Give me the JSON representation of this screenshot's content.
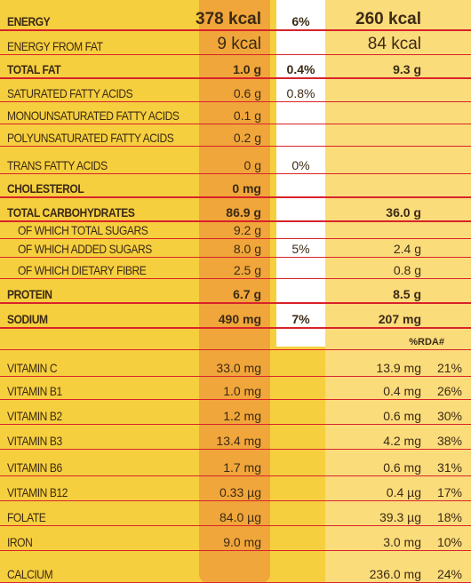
{
  "rows": [
    {
      "label": "ENERGY",
      "bold": true,
      "v1": "378 kcal",
      "v2": "6%",
      "v3": "260 kcal",
      "v4": ""
    },
    {
      "label": "ENERGY FROM FAT",
      "bold": false,
      "v1": "9 kcal",
      "v2": "",
      "v3": "84 kcal",
      "v4": ""
    },
    {
      "label": "TOTAL FAT",
      "bold": true,
      "v1": "1.0 g",
      "v2": "0.4%",
      "v3": "9.3 g",
      "v4": ""
    },
    {
      "label": "SATURATED FATTY ACIDS",
      "bold": false,
      "v1": "0.6 g",
      "v2": "0.8%",
      "v3": "",
      "v4": ""
    },
    {
      "label": "MONOUNSATURATED FATTY ACIDS",
      "bold": false,
      "v1": "0.1 g",
      "v2": "",
      "v3": "",
      "v4": ""
    },
    {
      "label": "POLYUNSATURATED FATTY ACIDS",
      "bold": false,
      "v1": "0.2 g",
      "v2": "",
      "v3": "",
      "v4": ""
    },
    {
      "label": "TRANS FATTY ACIDS",
      "bold": false,
      "v1": "0 g",
      "v2": "0%",
      "v3": "",
      "v4": ""
    },
    {
      "label": "CHOLESTEROL",
      "bold": true,
      "v1": "0 mg",
      "v2": "",
      "v3": "",
      "v4": ""
    },
    {
      "label": "TOTAL CARBOHYDRATES",
      "bold": true,
      "v1": "86.9 g",
      "v2": "",
      "v3": "36.0 g",
      "v4": ""
    },
    {
      "label": "OF WHICH TOTAL SUGARS",
      "bold": false,
      "sub": true,
      "v1": "9.2 g",
      "v2": "",
      "v3": "",
      "v4": ""
    },
    {
      "label": "OF WHICH ADDED SUGARS",
      "bold": false,
      "sub": true,
      "v1": "8.0 g",
      "v2": "5%",
      "v3": "2.4 g",
      "v4": ""
    },
    {
      "label": "OF WHICH DIETARY FIBRE",
      "bold": false,
      "sub": true,
      "v1": "2.5 g",
      "v2": "",
      "v3": "0.8 g",
      "v4": ""
    },
    {
      "label": "PROTEIN",
      "bold": true,
      "v1": "6.7 g",
      "v2": "",
      "v3": "8.5 g",
      "v4": ""
    },
    {
      "label": "SODIUM",
      "bold": true,
      "v1": "490 mg",
      "v2": "7%",
      "v3": "207 mg",
      "v4": ""
    },
    {
      "label": "",
      "bold": false,
      "v1": "",
      "v2": "",
      "v3": "",
      "v4": "",
      "rda_header": "%RDA#"
    },
    {
      "label": "VITAMIN C",
      "bold": false,
      "v1": "33.0 mg",
      "v2": "",
      "v3": "13.9 mg",
      "v4": "21%"
    },
    {
      "label": "VITAMIN B1",
      "bold": false,
      "v1": "1.0 mg",
      "v2": "",
      "v3": "0.4 mg",
      "v4": "26%"
    },
    {
      "label": "VITAMIN B2",
      "bold": false,
      "v1": "1.2 mg",
      "v2": "",
      "v3": "0.6 mg",
      "v4": "30%"
    },
    {
      "label": "VITAMIN B3",
      "bold": false,
      "v1": "13.4 mg",
      "v2": "",
      "v3": "4.2 mg",
      "v4": "38%"
    },
    {
      "label": "VITAMIN B6",
      "bold": false,
      "v1": "1.7 mg",
      "v2": "",
      "v3": "0.6 mg",
      "v4": "31%"
    },
    {
      "label": "VITAMIN B12",
      "bold": false,
      "v1": "0.33 µg",
      "v2": "",
      "v3": "0.4 µg",
      "v4": "17%"
    },
    {
      "label": "FOLATE",
      "bold": false,
      "v1": "84.0 µg",
      "v2": "",
      "v3": "39.3 µg",
      "v4": "18%"
    },
    {
      "label": "IRON",
      "bold": false,
      "v1": "9.0 mg",
      "v2": "",
      "v3": "3.0 mg",
      "v4": "10%"
    },
    {
      "label": "CALCIUM",
      "bold": false,
      "v1": "",
      "v2": "",
      "v3": "236.0 mg",
      "v4": "24%"
    }
  ],
  "colors": {
    "background": "#f6cf3f",
    "per100_column": "#f0a63a",
    "percent_column": "#ffffff",
    "serving_column": "#fbdc7b",
    "row_line": "#d8232a"
  }
}
